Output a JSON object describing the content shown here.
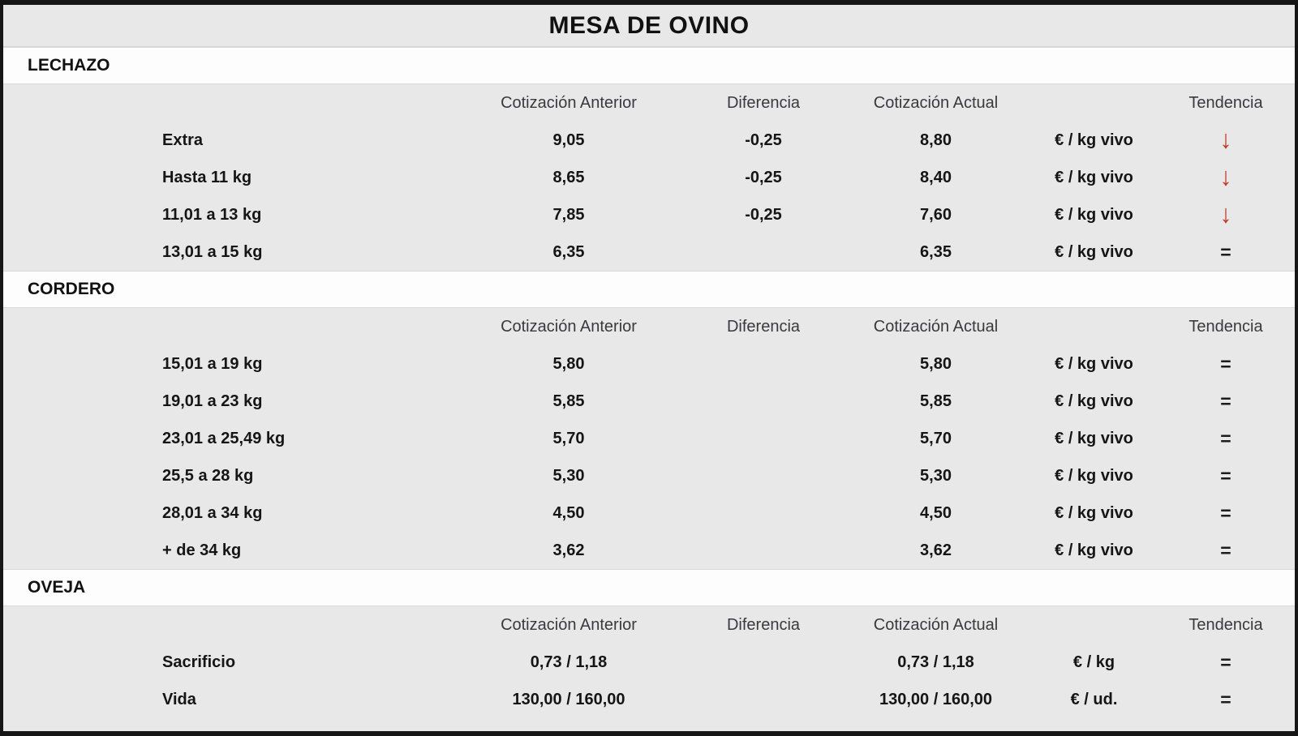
{
  "title": "MESA DE OVINO",
  "columns": {
    "anterior": "Cotización Anterior",
    "diferencia": "Diferencia",
    "actual": "Cotización Actual",
    "tendencia": "Tendencia"
  },
  "trend_glyphs": {
    "down": "↓",
    "equal": "="
  },
  "colors": {
    "band_gray": "#e8e8e8",
    "band_white": "#fdfdfd",
    "border_black": "#161616",
    "trend_down_red": "#c0392b",
    "header_text": "#3a3a3e",
    "value_text": "#151515"
  },
  "sections": [
    {
      "name": "LECHAZO",
      "rows": [
        {
          "label": "Extra",
          "anterior": "9,05",
          "diferencia": "-0,25",
          "actual": "8,80",
          "unit": "€ / kg vivo",
          "trend": "down"
        },
        {
          "label": "Hasta 11 kg",
          "anterior": "8,65",
          "diferencia": "-0,25",
          "actual": "8,40",
          "unit": "€ / kg vivo",
          "trend": "down"
        },
        {
          "label": "11,01 a 13 kg",
          "anterior": "7,85",
          "diferencia": "-0,25",
          "actual": "7,60",
          "unit": "€ / kg vivo",
          "trend": "down"
        },
        {
          "label": "13,01 a 15 kg",
          "anterior": "6,35",
          "diferencia": "",
          "actual": "6,35",
          "unit": "€ / kg vivo",
          "trend": "equal"
        }
      ]
    },
    {
      "name": "CORDERO",
      "rows": [
        {
          "label": "15,01 a 19 kg",
          "anterior": "5,80",
          "diferencia": "",
          "actual": "5,80",
          "unit": "€ / kg vivo",
          "trend": "equal"
        },
        {
          "label": "19,01 a 23 kg",
          "anterior": "5,85",
          "diferencia": "",
          "actual": "5,85",
          "unit": "€ / kg vivo",
          "trend": "equal"
        },
        {
          "label": "23,01 a 25,49 kg",
          "anterior": "5,70",
          "diferencia": "",
          "actual": "5,70",
          "unit": "€ / kg vivo",
          "trend": "equal"
        },
        {
          "label": "25,5 a 28 kg",
          "anterior": "5,30",
          "diferencia": "",
          "actual": "5,30",
          "unit": "€ / kg vivo",
          "trend": "equal"
        },
        {
          "label": "28,01 a 34 kg",
          "anterior": "4,50",
          "diferencia": "",
          "actual": "4,50",
          "unit": "€ / kg vivo",
          "trend": "equal"
        },
        {
          "label": "+ de 34 kg",
          "anterior": "3,62",
          "diferencia": "",
          "actual": "3,62",
          "unit": "€ / kg vivo",
          "trend": "equal"
        }
      ]
    },
    {
      "name": "OVEJA",
      "rows": [
        {
          "label": "Sacrificio",
          "anterior": "0,73 / 1,18",
          "diferencia": "",
          "actual": "0,73 / 1,18",
          "unit": "€ / kg",
          "trend": "equal"
        },
        {
          "label": "Vida",
          "anterior": "130,00 / 160,00",
          "diferencia": "",
          "actual": "130,00 / 160,00",
          "unit": "€ / ud.",
          "trend": "equal"
        }
      ]
    }
  ]
}
